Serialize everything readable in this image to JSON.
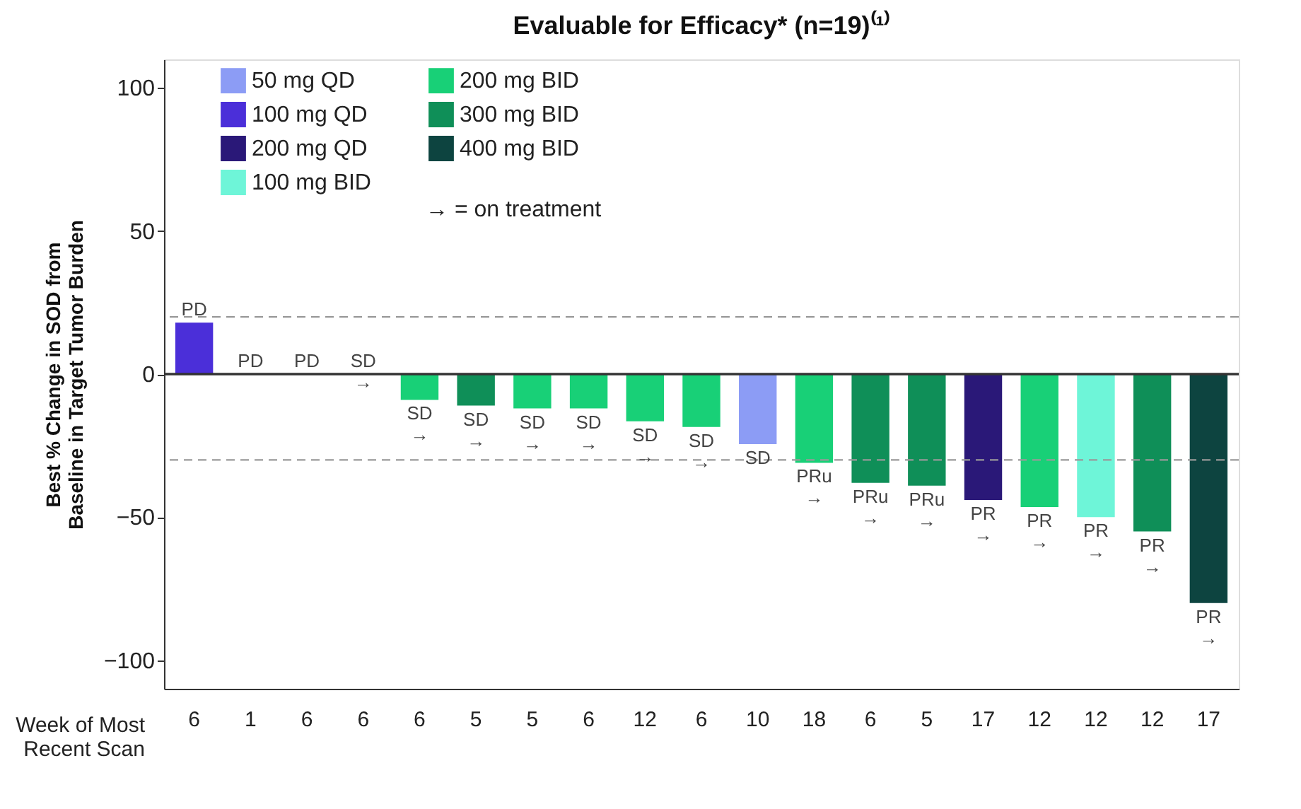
{
  "chart_data": {
    "type": "bar",
    "title": "Evaluable for Efficacy* (n=19)⁽¹⁾",
    "xlabel": "Week of Most Recent Scan",
    "ylabel": "Best % Change in SOD from Baseline in Target Tumor Burden",
    "categories": [
      "6",
      "1",
      "6",
      "6",
      "6",
      "5",
      "5",
      "6",
      "12",
      "6",
      "10",
      "18",
      "6",
      "5",
      "17",
      "12",
      "12",
      "12",
      "17"
    ],
    "series": [
      {
        "name": "50 mg QD",
        "color": "#8c9cf5",
        "values": [
          null,
          null,
          null,
          null,
          null,
          null,
          null,
          null,
          null,
          null,
          -24.5,
          null,
          null,
          null,
          null,
          null,
          null,
          null,
          null
        ]
      },
      {
        "name": "100 mg QD",
        "color": "#4b2fd9",
        "values": [
          18,
          null,
          null,
          null,
          null,
          null,
          null,
          null,
          null,
          null,
          null,
          null,
          null,
          null,
          null,
          null,
          null,
          null,
          null
        ]
      },
      {
        "name": "200 mg QD",
        "color": "#2a1878",
        "values": [
          null,
          null,
          null,
          null,
          null,
          null,
          null,
          null,
          null,
          null,
          null,
          null,
          null,
          null,
          -44,
          null,
          null,
          null,
          null
        ]
      },
      {
        "name": "100 mg BID",
        "color": "#6ef5d8",
        "values": [
          null,
          null,
          null,
          null,
          null,
          null,
          null,
          null,
          null,
          null,
          null,
          null,
          null,
          null,
          null,
          null,
          -50,
          null,
          null
        ]
      },
      {
        "name": "200 mg BID",
        "color": "#18d077",
        "values": [
          null,
          null,
          0,
          0,
          -9,
          null,
          -12,
          -12,
          -16.5,
          -18.5,
          null,
          -31,
          null,
          null,
          null,
          -46.5,
          null,
          null,
          null
        ]
      },
      {
        "name": "300 mg BID",
        "color": "#0f8f58",
        "values": [
          null,
          0,
          null,
          null,
          null,
          -11,
          null,
          null,
          null,
          null,
          null,
          null,
          -38,
          -39,
          null,
          null,
          null,
          -55,
          null
        ]
      },
      {
        "name": "400 mg BID",
        "color": "#0d4440",
        "values": [
          null,
          null,
          null,
          null,
          null,
          null,
          null,
          null,
          null,
          null,
          null,
          null,
          null,
          null,
          null,
          null,
          null,
          null,
          -80
        ]
      }
    ],
    "value_labels": [
      "PD",
      "PD",
      "PD",
      "SD\n→",
      "SD\n→",
      "SD\n→",
      "SD\n→",
      "SD\n→",
      "SD\n→",
      "SD\n→",
      "SD",
      "PRu\n→",
      "PRu\n→",
      "PRu\n→",
      "PR\n→",
      "PR\n→",
      "PR\n→",
      "PR\n→",
      "PR\n→"
    ],
    "ylim": [
      -110,
      110
    ],
    "yticks": [
      -100,
      -50,
      0,
      50,
      100
    ],
    "ref_lines": [
      {
        "axis": "y",
        "value": 0,
        "color": "#333333",
        "line_style": "solid"
      },
      {
        "axis": "y",
        "value": 20,
        "color": "#999999",
        "line_style": "dashed"
      },
      {
        "axis": "y",
        "value": -30,
        "color": "#999999",
        "line_style": "dashed"
      }
    ],
    "annotations": [
      "→ = on treatment"
    ],
    "legend": "top left",
    "grid": false
  }
}
